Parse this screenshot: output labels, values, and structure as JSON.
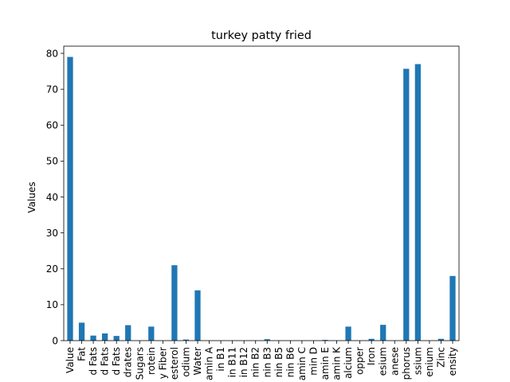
{
  "chart_data": {
    "type": "bar",
    "title": "turkey patty fried",
    "xlabel": "",
    "ylabel": "Values",
    "ylim": [
      0,
      82
    ],
    "yticks": [
      0,
      10,
      20,
      30,
      40,
      50,
      60,
      70,
      80
    ],
    "bar_color": "#1f77b4",
    "grid": false,
    "categories": [
      "Value",
      "Fat",
      "d Fats",
      "d Fats",
      "d Fats",
      "drates",
      "Sugars",
      "rotein",
      "y Fiber",
      "esterol",
      "odium",
      "Water",
      "amin A",
      "in B1",
      "in B11",
      "in B12",
      "nin B2",
      "nin B3",
      "nin B5",
      "nin B6",
      "amin C",
      "min D",
      "amin E",
      "amin K",
      "alcium",
      "opper",
      "Iron",
      "esium",
      "anese",
      "phorus",
      "ssium",
      "enium",
      "Zinc",
      "ensity"
    ],
    "values": [
      79,
      5,
      1.4,
      2.0,
      1.3,
      4.3,
      0,
      3.9,
      0,
      21,
      0.3,
      14,
      0,
      0,
      0,
      0,
      0,
      0.4,
      0,
      0,
      0,
      0,
      0.2,
      0,
      3.9,
      0,
      0.5,
      4.4,
      0,
      75.7,
      77,
      0,
      0.5,
      18
    ]
  }
}
